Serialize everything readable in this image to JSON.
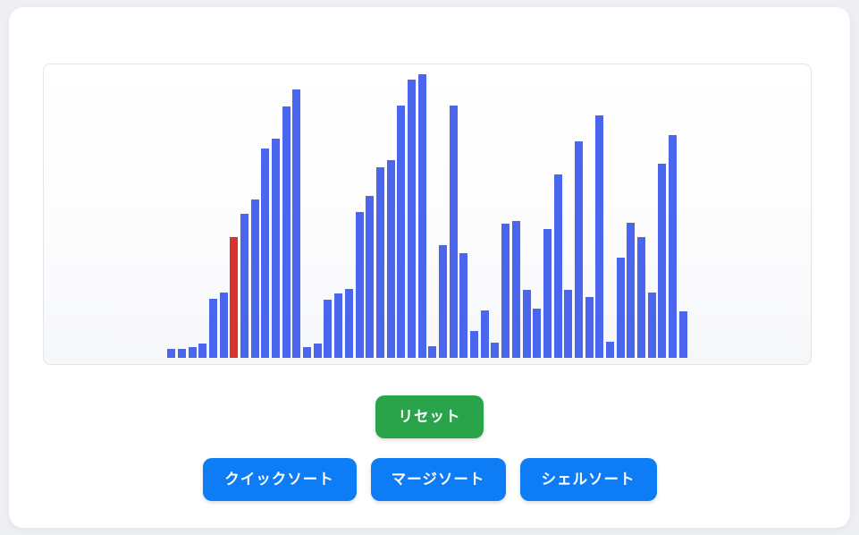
{
  "app": {
    "page_background": "#edeff3",
    "card_background": "#ffffff"
  },
  "visualizer": {
    "type": "bar",
    "bar_color": "#4a66ec",
    "highlight_color": "#d6342c",
    "highlight_index": 6,
    "bar_count": 50,
    "values": [
      10,
      10,
      12,
      16,
      66,
      73,
      135,
      161,
      177,
      234,
      245,
      281,
      300,
      12,
      16,
      65,
      72,
      77,
      163,
      181,
      213,
      221,
      282,
      311,
      317,
      13,
      126,
      282,
      117,
      30,
      53,
      17,
      150,
      153,
      76,
      55,
      144,
      205,
      76,
      242,
      68,
      271,
      18,
      112,
      151,
      135,
      73,
      217,
      249,
      52
    ]
  },
  "controls": {
    "reset": {
      "label": "リセット",
      "color": "#2aa44b"
    },
    "algorithms": [
      {
        "id": "quicksort",
        "label": "クイックソート",
        "color": "#0d7cf5"
      },
      {
        "id": "mergesort",
        "label": "マージソート",
        "color": "#0d7cf5"
      },
      {
        "id": "shellsort",
        "label": "シェルソート",
        "color": "#0d7cf5"
      }
    ]
  }
}
